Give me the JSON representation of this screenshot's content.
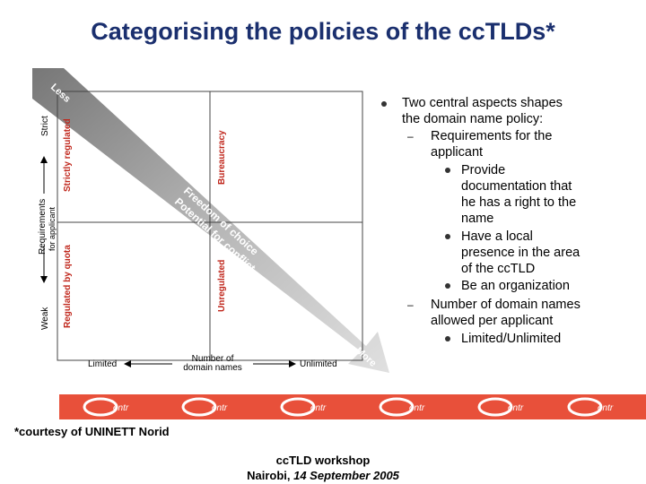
{
  "title": "Categorising the policies of the ccTLDs*",
  "diagram": {
    "arrow_top_label": "Less",
    "arrow_bottom_label": "More",
    "diagonal_line1": "Freedom of choice",
    "diagonal_line2": "Potential for conflict",
    "y_axis": {
      "top": "Strict",
      "label_line1": "Requirements",
      "label_line2": "for applicant",
      "bottom": "Weak"
    },
    "x_axis": {
      "left": "Limited",
      "label_line1": "Number of",
      "label_line2": "domain names",
      "right": "Unlimited"
    },
    "quadrants": {
      "top_left": "Strictly regulated",
      "top_right": "Bureaucracy",
      "bottom_left": "Regulated by quota",
      "bottom_right": "Unregulated"
    }
  },
  "bullets": {
    "main_line1": "Two central aspects shapes",
    "main_line2": "the domain name policy:",
    "sub1_line1": "Requirements for the",
    "sub1_line2": "applicant",
    "item1_line1": "Provide",
    "item1_line2": "documentation that",
    "item1_line3": "he has a right to the",
    "item1_line4": "name",
    "item2_line1": "Have a local",
    "item2_line2": "presence in the area",
    "item2_line3": "of the ccTLD",
    "item3_line1": "Be an organization",
    "sub2_line1": "Number of domain names",
    "sub2_line2": "allowed per applicant",
    "item4_line1": "Limited/Unlimited",
    "dash": "–"
  },
  "banner": {
    "logo_text": "entr",
    "color": "#e8503a"
  },
  "footnote": "*courtesy of UNINETT Norid",
  "footer": {
    "line1": "ccTLD workshop",
    "line2_prefix": "Nairobi, ",
    "line2_italic": "14 September 2005"
  }
}
